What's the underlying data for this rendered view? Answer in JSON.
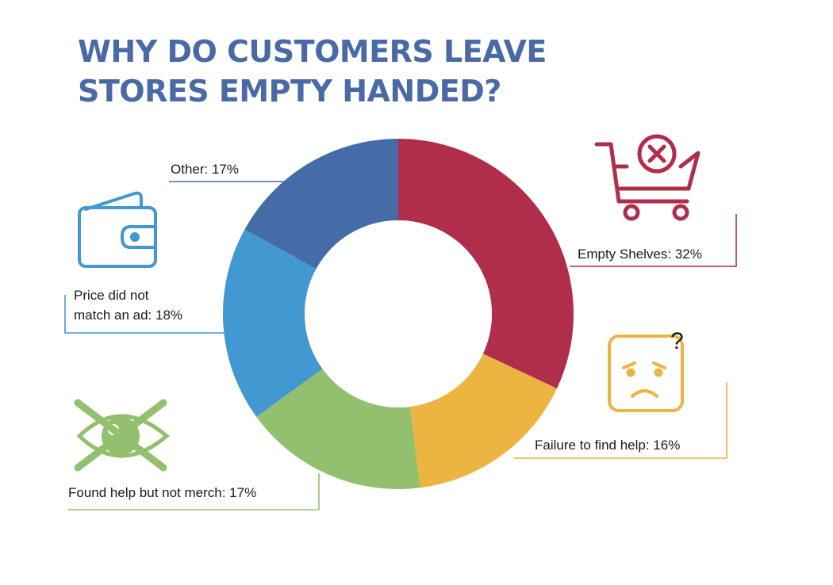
{
  "title": {
    "line1": "WHY DO CUSTOMERS LEAVE",
    "line2": "STORES EMPTY HANDED?"
  },
  "chart_data": {
    "type": "pie",
    "variant": "donut",
    "title": "WHY DO CUSTOMERS LEAVE STORES EMPTY HANDED?",
    "unit": "%",
    "slices": [
      {
        "label": "Empty Shelves",
        "value": 32,
        "text": "Empty Shelves: 32%",
        "color": "#b02e4c",
        "icon": "shopping-cart-x-icon"
      },
      {
        "label": "Failure to find help",
        "value": 16,
        "text": "Failure to find help: 16%",
        "color": "#ecb440",
        "icon": "confused-face-icon"
      },
      {
        "label": "Found help but not merch",
        "value": 17,
        "text": "Found help but not merch: 17%",
        "color": "#93c06f",
        "icon": "eye-crossed-icon"
      },
      {
        "label": "Price did not match an ad",
        "value": 18,
        "lines": [
          "Price did not",
          "match an ad: 18%"
        ],
        "color": "#4298d1",
        "icon": "wallet-icon"
      },
      {
        "label": "Other",
        "value": 17,
        "text": "Other: 17%",
        "color": "#466ca8",
        "icon": ""
      }
    ],
    "icon_glyphs": {
      "question_mark": "?"
    }
  }
}
